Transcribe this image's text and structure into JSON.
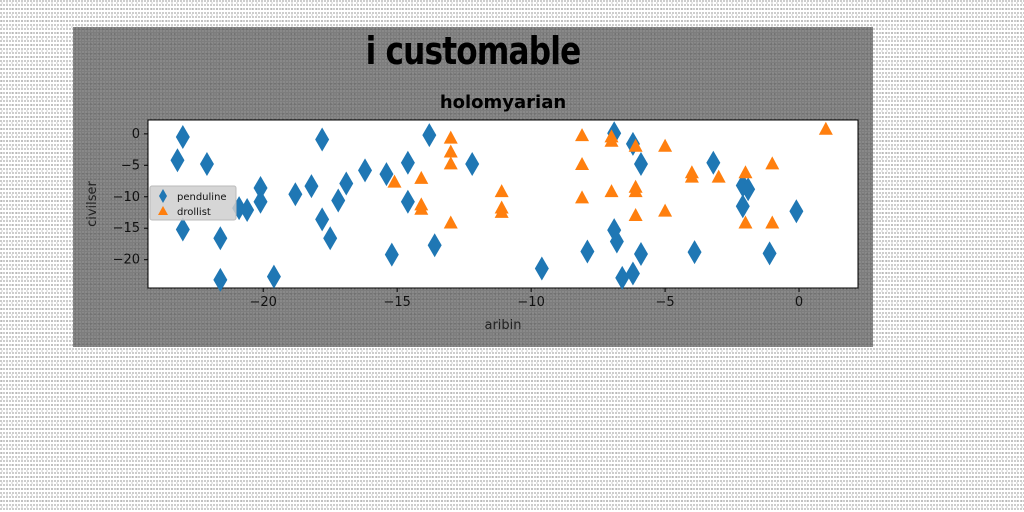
{
  "figure": {
    "suptitle": "i customable"
  },
  "chart_data": {
    "type": "scatter",
    "title": "holomyarian",
    "xlabel": "aribin",
    "ylabel": "civilser",
    "xlim": [
      -24.3,
      2.2
    ],
    "ylim": [
      -24.5,
      2.2
    ],
    "xticks": [
      -20,
      -15,
      -10,
      -5,
      0
    ],
    "xtick_labels": [
      "−20",
      "−15",
      "−10",
      "−5",
      "0"
    ],
    "yticks": [
      0,
      -5,
      -10,
      -15,
      -20
    ],
    "ytick_labels": [
      "0",
      "−5",
      "−10",
      "−15",
      "−20"
    ],
    "legend": {
      "position": "center-left"
    },
    "series": [
      {
        "name": "penduline",
        "marker": "diamond",
        "color": "#1f77b4",
        "points": [
          [
            -23.0,
            -0.5
          ],
          [
            -23.2,
            -4.2
          ],
          [
            -22.1,
            -4.8
          ],
          [
            -23.0,
            -15.2
          ],
          [
            -21.6,
            -16.6
          ],
          [
            -21.6,
            -23.2
          ],
          [
            -20.1,
            -8.6
          ],
          [
            -20.1,
            -10.8
          ],
          [
            -20.6,
            -12.1
          ],
          [
            -20.9,
            -11.8
          ],
          [
            -19.6,
            -22.7
          ],
          [
            -18.8,
            -9.6
          ],
          [
            -18.2,
            -8.3
          ],
          [
            -17.8,
            -0.9
          ],
          [
            -17.8,
            -13.6
          ],
          [
            -17.5,
            -16.6
          ],
          [
            -17.2,
            -10.6
          ],
          [
            -16.9,
            -7.9
          ],
          [
            -16.2,
            -5.8
          ],
          [
            -15.4,
            -6.4
          ],
          [
            -15.2,
            -19.2
          ],
          [
            -14.6,
            -4.6
          ],
          [
            -14.6,
            -10.8
          ],
          [
            -13.8,
            -0.2
          ],
          [
            -13.6,
            -17.7
          ],
          [
            -12.2,
            -4.8
          ],
          [
            -9.6,
            -21.4
          ],
          [
            -7.9,
            -18.7
          ],
          [
            -6.9,
            0.1
          ],
          [
            -6.9,
            -15.3
          ],
          [
            -6.8,
            -17.1
          ],
          [
            -6.6,
            -22.9
          ],
          [
            -6.2,
            -22.2
          ],
          [
            -6.2,
            -1.6
          ],
          [
            -5.9,
            -19.1
          ],
          [
            -5.9,
            -4.8
          ],
          [
            -3.9,
            -18.8
          ],
          [
            -3.2,
            -4.6
          ],
          [
            -2.1,
            -8.2
          ],
          [
            -2.1,
            -11.5
          ],
          [
            -1.9,
            -8.8
          ],
          [
            -1.1,
            -19.0
          ],
          [
            -0.1,
            -12.3
          ]
        ]
      },
      {
        "name": "drollist",
        "marker": "triangle",
        "color": "#ff7f0e",
        "points": [
          [
            -15.1,
            -7.6
          ],
          [
            -14.1,
            -7.0
          ],
          [
            -14.1,
            -11.2
          ],
          [
            -14.1,
            -11.9
          ],
          [
            -13.0,
            -0.6
          ],
          [
            -13.0,
            -2.8
          ],
          [
            -13.0,
            -4.7
          ],
          [
            -13.0,
            -14.1
          ],
          [
            -11.1,
            -9.1
          ],
          [
            -11.1,
            -11.7
          ],
          [
            -11.1,
            -12.4
          ],
          [
            -8.1,
            -0.2
          ],
          [
            -8.1,
            -4.8
          ],
          [
            -8.1,
            -10.1
          ],
          [
            -7.0,
            -0.4
          ],
          [
            -7.0,
            -1.1
          ],
          [
            -7.0,
            -9.1
          ],
          [
            -6.1,
            -1.9
          ],
          [
            -6.1,
            -8.4
          ],
          [
            -6.1,
            -9.1
          ],
          [
            -6.1,
            -12.9
          ],
          [
            -5.0,
            -1.9
          ],
          [
            -5.0,
            -12.2
          ],
          [
            -4.0,
            -6.1
          ],
          [
            -4.0,
            -6.8
          ],
          [
            -3.0,
            -6.8
          ],
          [
            -2.0,
            -6.1
          ],
          [
            -2.0,
            -14.1
          ],
          [
            -1.0,
            -4.7
          ],
          [
            -1.0,
            -14.1
          ],
          [
            1.0,
            0.8
          ]
        ]
      }
    ]
  }
}
